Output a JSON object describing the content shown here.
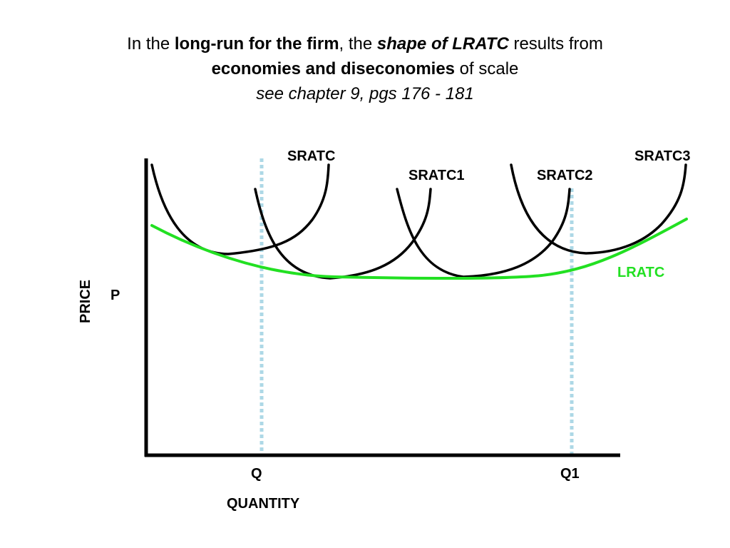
{
  "title": {
    "line1": {
      "part1": "In the ",
      "part2": "long-run for the firm",
      "part3": ", the ",
      "part4": "shape of LRATC",
      "part5": " results from"
    },
    "line2": {
      "part1": "economies and diseconomies",
      "part2": " of scale"
    },
    "line3": "see chapter 9, pgs 176 - 181"
  },
  "diagram": {
    "y_axis_label": "PRICE",
    "x_axis_label": "QUANTITY",
    "price_label": "P",
    "quantity_marks": [
      "Q",
      "Q1"
    ],
    "short_run_curves": [
      "SRATC",
      "SRATC1",
      "SRATC2",
      "SRATC3"
    ],
    "long_run_curve": "LRATC",
    "colors": {
      "short_run_curve": "#000000",
      "long_run_curve": "#22e022",
      "quantity_guides": "#add8e6",
      "axes": "#000000"
    }
  }
}
